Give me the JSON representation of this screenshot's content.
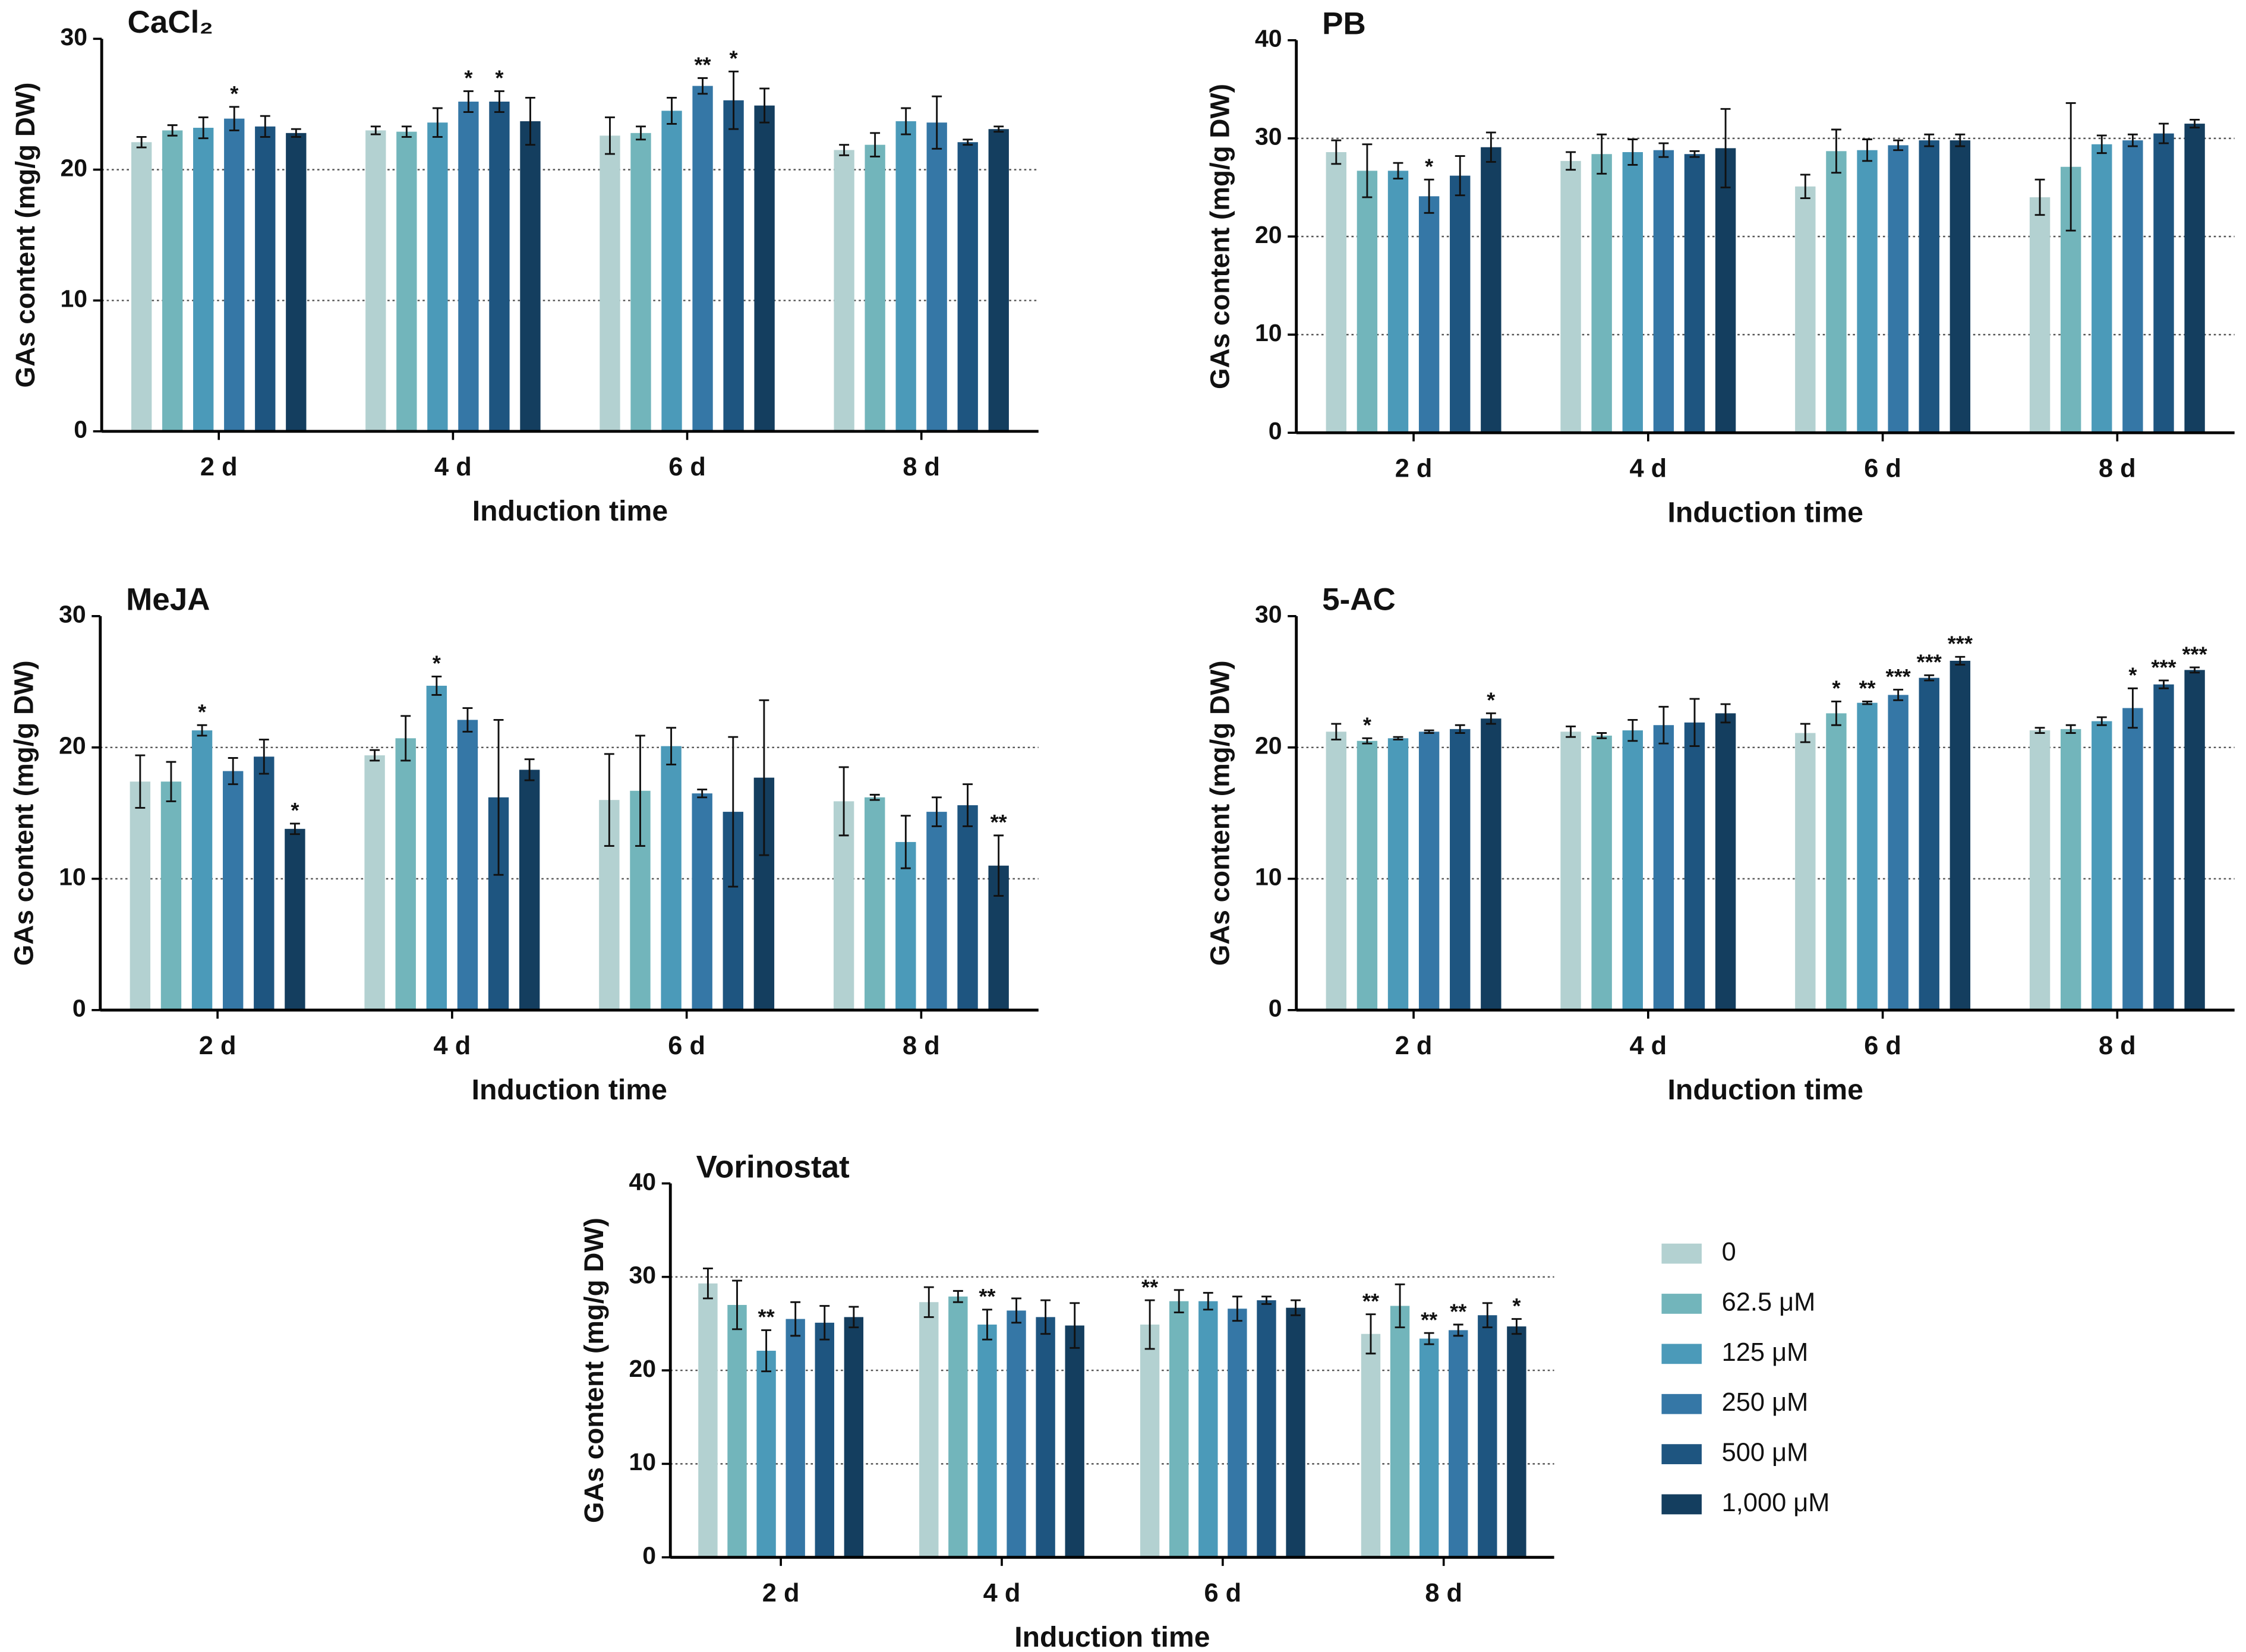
{
  "chart_data": [
    {
      "type": "bar",
      "title": "CaCl₂",
      "xlabel": "Induction time",
      "ylabel": "GAs content (mg/g DW)",
      "categories": [
        "2 d",
        "4 d",
        "6 d",
        "8 d"
      ],
      "ylim": [
        0,
        30
      ],
      "yticks": [
        0,
        10,
        20,
        30
      ],
      "grid": true,
      "series": [
        {
          "color": "#b3d1d1",
          "values": [
            22.1,
            23.0,
            22.6,
            21.5
          ],
          "errors": [
            0.4,
            0.3,
            1.4,
            0.4
          ],
          "annotations": [
            null,
            null,
            null,
            null
          ]
        },
        {
          "color": "#72b5bb",
          "values": [
            23.0,
            22.9,
            22.8,
            21.9
          ],
          "errors": [
            0.4,
            0.4,
            0.5,
            0.9
          ],
          "annotations": [
            null,
            null,
            null,
            null
          ]
        },
        {
          "color": "#4b9ab9",
          "values": [
            23.2,
            23.6,
            24.5,
            23.7
          ],
          "errors": [
            0.8,
            1.1,
            1.0,
            1.0
          ],
          "annotations": [
            null,
            null,
            null,
            null
          ]
        },
        {
          "color": "#3577a6",
          "values": [
            23.9,
            25.2,
            26.4,
            23.6
          ],
          "errors": [
            0.9,
            0.8,
            0.6,
            2.0
          ],
          "annotations": [
            "*",
            "*",
            "**",
            null
          ]
        },
        {
          "color": "#1e5580",
          "values": [
            23.3,
            25.2,
            25.3,
            22.1
          ],
          "errors": [
            0.8,
            0.8,
            2.2,
            0.2
          ],
          "annotations": [
            null,
            "*",
            "*",
            null
          ]
        },
        {
          "color": "#143e5f",
          "values": [
            22.8,
            23.7,
            24.9,
            23.1
          ],
          "errors": [
            0.3,
            1.8,
            1.3,
            0.2
          ],
          "annotations": [
            null,
            null,
            null,
            null
          ]
        }
      ]
    },
    {
      "type": "bar",
      "title": "PB",
      "xlabel": "Induction time",
      "ylabel": "GAs content (mg/g DW)",
      "categories": [
        "2 d",
        "4 d",
        "6 d",
        "8 d"
      ],
      "ylim": [
        0,
        40
      ],
      "yticks": [
        0,
        10,
        20,
        30,
        40
      ],
      "grid": true,
      "series": [
        {
          "color": "#b3d1d1",
          "values": [
            28.6,
            27.7,
            25.1,
            24.0
          ],
          "errors": [
            1.2,
            0.9,
            1.2,
            1.8
          ],
          "annotations": [
            null,
            null,
            null,
            null
          ]
        },
        {
          "color": "#72b5bb",
          "values": [
            26.7,
            28.4,
            28.7,
            27.1
          ],
          "errors": [
            2.7,
            2.0,
            2.2,
            6.5
          ],
          "annotations": [
            null,
            null,
            null,
            null
          ]
        },
        {
          "color": "#4b9ab9",
          "values": [
            26.7,
            28.6,
            28.8,
            29.4
          ],
          "errors": [
            0.8,
            1.3,
            1.1,
            0.9
          ],
          "annotations": [
            null,
            null,
            null,
            null
          ]
        },
        {
          "color": "#3577a6",
          "values": [
            24.1,
            28.8,
            29.3,
            29.8
          ],
          "errors": [
            1.7,
            0.7,
            0.5,
            0.6
          ],
          "annotations": [
            "*",
            null,
            null,
            null
          ]
        },
        {
          "color": "#1e5580",
          "values": [
            26.2,
            28.4,
            29.8,
            30.5
          ],
          "errors": [
            2.0,
            0.3,
            0.6,
            1.0
          ],
          "annotations": [
            null,
            null,
            null,
            null
          ]
        },
        {
          "color": "#143e5f",
          "values": [
            29.1,
            29.0,
            29.8,
            31.5
          ],
          "errors": [
            1.5,
            4.0,
            0.6,
            0.4
          ],
          "annotations": [
            null,
            null,
            null,
            null
          ]
        }
      ]
    },
    {
      "type": "bar",
      "title": "MeJA",
      "xlabel": "Induction time",
      "ylabel": "GAs content (mg/g DW)",
      "categories": [
        "2 d",
        "4 d",
        "6 d",
        "8 d"
      ],
      "ylim": [
        0,
        30
      ],
      "yticks": [
        0,
        10,
        20,
        30
      ],
      "grid": true,
      "series": [
        {
          "color": "#b3d1d1",
          "values": [
            17.4,
            19.4,
            16.0,
            15.9
          ],
          "errors": [
            2.0,
            0.4,
            3.5,
            2.6
          ],
          "annotations": [
            null,
            null,
            null,
            null
          ]
        },
        {
          "color": "#72b5bb",
          "values": [
            17.4,
            20.7,
            16.7,
            16.2
          ],
          "errors": [
            1.5,
            1.7,
            4.2,
            0.2
          ],
          "annotations": [
            null,
            null,
            null,
            null
          ]
        },
        {
          "color": "#4b9ab9",
          "values": [
            21.3,
            24.7,
            20.1,
            12.8
          ],
          "errors": [
            0.4,
            0.7,
            1.4,
            2.0
          ],
          "annotations": [
            "*",
            "*",
            null,
            null
          ]
        },
        {
          "color": "#3577a6",
          "values": [
            18.2,
            22.1,
            16.5,
            15.1
          ],
          "errors": [
            1.0,
            0.9,
            0.3,
            1.1
          ],
          "annotations": [
            null,
            null,
            null,
            null
          ]
        },
        {
          "color": "#1e5580",
          "values": [
            19.3,
            16.2,
            15.1,
            15.6
          ],
          "errors": [
            1.3,
            5.9,
            5.7,
            1.6
          ],
          "annotations": [
            null,
            null,
            null,
            null
          ]
        },
        {
          "color": "#143e5f",
          "values": [
            13.8,
            18.3,
            17.7,
            11.0
          ],
          "errors": [
            0.4,
            0.8,
            5.9,
            2.3
          ],
          "annotations": [
            "*",
            null,
            null,
            "**"
          ]
        }
      ]
    },
    {
      "type": "bar",
      "title": "5-AC",
      "xlabel": "Induction time",
      "ylabel": "GAs content (mg/g DW)",
      "categories": [
        "2 d",
        "4 d",
        "6 d",
        "8 d"
      ],
      "ylim": [
        0,
        30
      ],
      "yticks": [
        0,
        10,
        20,
        30
      ],
      "grid": true,
      "series": [
        {
          "color": "#b3d1d1",
          "values": [
            21.2,
            21.2,
            21.1,
            21.3
          ],
          "errors": [
            0.6,
            0.4,
            0.7,
            0.2
          ],
          "annotations": [
            null,
            null,
            null,
            null
          ]
        },
        {
          "color": "#72b5bb",
          "values": [
            20.5,
            20.9,
            22.6,
            21.4
          ],
          "errors": [
            0.2,
            0.2,
            0.9,
            0.3
          ],
          "annotations": [
            "*",
            null,
            "*",
            null
          ]
        },
        {
          "color": "#4b9ab9",
          "values": [
            20.7,
            21.3,
            23.4,
            22.0
          ],
          "errors": [
            0.1,
            0.8,
            0.1,
            0.3
          ],
          "annotations": [
            null,
            null,
            "**",
            null
          ]
        },
        {
          "color": "#3577a6",
          "values": [
            21.2,
            21.7,
            24.0,
            23.0
          ],
          "errors": [
            0.1,
            1.4,
            0.4,
            1.5
          ],
          "annotations": [
            null,
            null,
            "***",
            "*"
          ]
        },
        {
          "color": "#1e5580",
          "values": [
            21.4,
            21.9,
            25.3,
            24.8
          ],
          "errors": [
            0.3,
            1.8,
            0.2,
            0.3
          ],
          "annotations": [
            null,
            null,
            "***",
            "***"
          ]
        },
        {
          "color": "#143e5f",
          "values": [
            22.2,
            22.6,
            26.6,
            25.9
          ],
          "errors": [
            0.4,
            0.7,
            0.3,
            0.2
          ],
          "annotations": [
            "*",
            null,
            "***",
            "***"
          ]
        }
      ]
    },
    {
      "type": "bar",
      "title": "Vorinostat",
      "xlabel": "Induction time",
      "ylabel": "GAs content (mg/g DW)",
      "categories": [
        "2 d",
        "4 d",
        "6 d",
        "8 d"
      ],
      "ylim": [
        0,
        40
      ],
      "yticks": [
        0,
        10,
        20,
        30,
        40
      ],
      "grid": true,
      "legend": "right",
      "series": [
        {
          "name": "0",
          "color": "#b3d1d1",
          "values": [
            29.3,
            27.3,
            24.9,
            23.9
          ],
          "errors": [
            1.6,
            1.6,
            2.6,
            2.1
          ],
          "annotations": [
            null,
            null,
            "**",
            "**"
          ]
        },
        {
          "name": "62.5 μM",
          "color": "#72b5bb",
          "values": [
            27.0,
            27.9,
            27.4,
            26.9
          ],
          "errors": [
            2.6,
            0.6,
            1.2,
            2.3
          ],
          "annotations": [
            null,
            null,
            null,
            null
          ]
        },
        {
          "name": "125  μM",
          "color": "#4b9ab9",
          "values": [
            22.1,
            24.9,
            27.4,
            23.4
          ],
          "errors": [
            2.2,
            1.6,
            0.9,
            0.6
          ],
          "annotations": [
            "**",
            "**",
            null,
            "**"
          ]
        },
        {
          "name": "250  μM",
          "color": "#3577a6",
          "values": [
            25.5,
            26.4,
            26.6,
            24.3
          ],
          "errors": [
            1.8,
            1.3,
            1.3,
            0.6
          ],
          "annotations": [
            null,
            null,
            null,
            "**"
          ]
        },
        {
          "name": "500  μM",
          "color": "#1e5580",
          "values": [
            25.1,
            25.7,
            27.5,
            25.9
          ],
          "errors": [
            1.8,
            1.8,
            0.4,
            1.3
          ],
          "annotations": [
            null,
            null,
            null,
            null
          ]
        },
        {
          "name": "1,000 μM",
          "color": "#143e5f",
          "values": [
            25.7,
            24.8,
            26.7,
            24.7
          ],
          "errors": [
            1.1,
            2.4,
            0.8,
            0.8
          ],
          "annotations": [
            null,
            null,
            null,
            "*"
          ]
        }
      ]
    }
  ]
}
